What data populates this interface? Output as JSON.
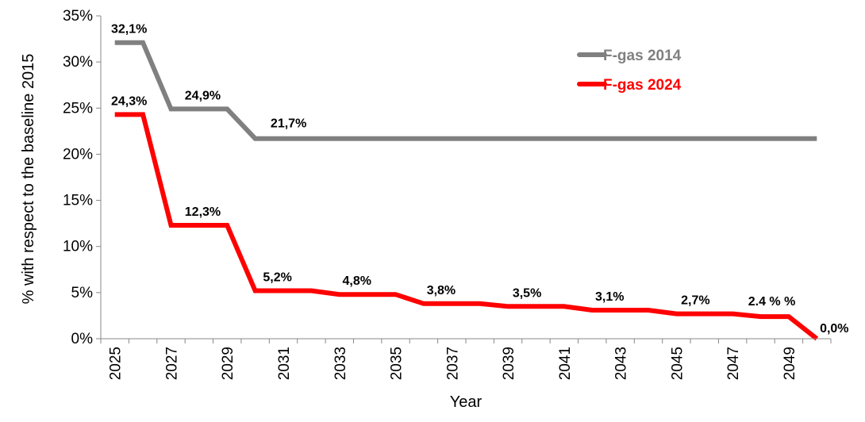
{
  "chart_data": {
    "type": "line",
    "title": "",
    "xlabel": "Year",
    "ylabel": "% with respect to the baseline 2015",
    "x": [
      2025,
      2026,
      2027,
      2028,
      2029,
      2030,
      2031,
      2032,
      2033,
      2034,
      2035,
      2036,
      2037,
      2038,
      2039,
      2040,
      2041,
      2042,
      2043,
      2044,
      2045,
      2046,
      2047,
      2048,
      2049,
      2050
    ],
    "x_tick_labels": [
      "2025",
      "2027",
      "2029",
      "2031",
      "2033",
      "2035",
      "2037",
      "2039",
      "2041",
      "2043",
      "2045",
      "2047",
      "2049"
    ],
    "y_tick_labels": [
      "0%",
      "5%",
      "10%",
      "15%",
      "20%",
      "25%",
      "30%",
      "35%"
    ],
    "ylim": [
      0,
      35
    ],
    "grid": false,
    "legend_position": "top-right",
    "series": [
      {
        "name": "F-gas 2014",
        "color": "#808080",
        "step": true,
        "values": [
          32.1,
          32.1,
          24.9,
          24.9,
          24.9,
          21.7,
          21.7,
          21.7,
          21.7,
          21.7,
          21.7,
          21.7,
          21.7,
          21.7,
          21.7,
          21.7,
          21.7,
          21.7,
          21.7,
          21.7,
          21.7,
          21.7,
          21.7,
          21.7,
          21.7,
          21.7
        ]
      },
      {
        "name": "F-gas 2024",
        "color": "#ff0000",
        "step": true,
        "values": [
          24.3,
          24.3,
          12.3,
          12.3,
          12.3,
          5.2,
          5.2,
          5.2,
          4.8,
          4.8,
          4.8,
          3.8,
          3.8,
          3.8,
          3.5,
          3.5,
          3.5,
          3.1,
          3.1,
          3.1,
          2.7,
          2.7,
          2.7,
          2.4,
          2.4,
          0.0
        ]
      }
    ],
    "annotations": [
      {
        "series": 0,
        "x": 2025,
        "y": 32.1,
        "text": "32,1%"
      },
      {
        "series": 0,
        "x": 2027,
        "y": 24.9,
        "text": "24,9%"
      },
      {
        "series": 0,
        "x": 2030,
        "y": 21.7,
        "text": "21,7%"
      },
      {
        "series": 1,
        "x": 2025,
        "y": 24.3,
        "text": "24,3%"
      },
      {
        "series": 1,
        "x": 2027,
        "y": 12.3,
        "text": "12,3%"
      },
      {
        "series": 1,
        "x": 2030,
        "y": 5.2,
        "text": "5,2%"
      },
      {
        "series": 1,
        "x": 2033,
        "y": 4.8,
        "text": "4,8%"
      },
      {
        "series": 1,
        "x": 2036,
        "y": 3.8,
        "text": "3,8%"
      },
      {
        "series": 1,
        "x": 2039,
        "y": 3.5,
        "text": "3,5%"
      },
      {
        "series": 1,
        "x": 2042,
        "y": 3.1,
        "text": "3,1%"
      },
      {
        "series": 1,
        "x": 2045,
        "y": 2.7,
        "text": "2,7%"
      },
      {
        "series": 1,
        "x": 2048,
        "y": 2.4,
        "text": "2.4 % %"
      },
      {
        "series": 1,
        "x": 2050,
        "y": 0.0,
        "text": "0,0%"
      }
    ]
  }
}
